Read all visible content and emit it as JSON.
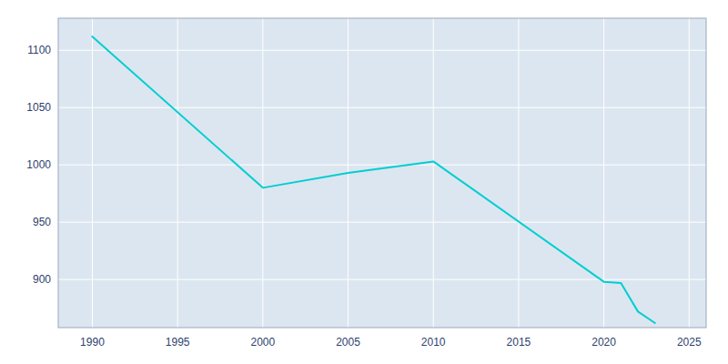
{
  "chart_data": {
    "type": "line",
    "x": [
      1990,
      2000,
      2005,
      2010,
      2020,
      2021,
      2022,
      2023
    ],
    "values": [
      1112,
      980,
      993,
      1003,
      898,
      897,
      872,
      862
    ],
    "color": "#00CED1",
    "xlim": [
      1988,
      2026
    ],
    "ylim": [
      858,
      1128
    ],
    "xticks": [
      1990,
      1995,
      2000,
      2005,
      2010,
      2015,
      2020,
      2025
    ],
    "yticks": [
      900,
      950,
      1000,
      1050,
      1100
    ],
    "grid": true
  }
}
